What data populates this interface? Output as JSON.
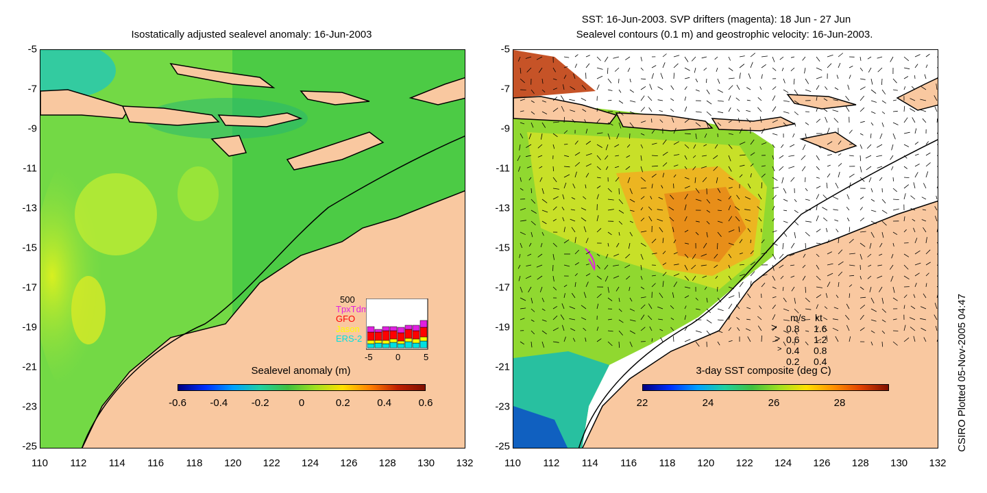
{
  "left_panel": {
    "title": "Isostatically adjusted sealevel anomaly: 16-Jun-2003",
    "y_ticks": [
      "-5",
      "-7",
      "-9",
      "-11",
      "-13",
      "-15",
      "-17",
      "-19",
      "-21",
      "-23",
      "-25"
    ],
    "x_ticks": [
      "110",
      "112",
      "114",
      "116",
      "118",
      "120",
      "122",
      "124",
      "126",
      "128",
      "130",
      "132"
    ],
    "colorbar": {
      "label": "Sealevel anomaly (m)",
      "ticks": [
        "-0.6",
        "-0.4",
        "-0.2",
        "0",
        "0.2",
        "0.4",
        "0.6"
      ],
      "range": [
        -0.6,
        0.6
      ]
    },
    "inset": {
      "max_label": "500",
      "legend": [
        {
          "name": "TpxTdm",
          "color": "#e020e0"
        },
        {
          "name": "GFO",
          "color": "#ff0000"
        },
        {
          "name": "Jason",
          "color": "#ffff00"
        },
        {
          "name": "ERS-2",
          "color": "#00e0e0"
        }
      ],
      "x_ticks": [
        "-5",
        "0",
        "5"
      ]
    }
  },
  "right_panel": {
    "title_line1": "SST: 16-Jun-2003. SVP drifters (magenta): 18 Jun - 27 Jun",
    "title_line2": "Sealevel contours (0.1 m) and geostrophic velocity: 16-Jun-2003.",
    "y_ticks": [
      "-5",
      "-7",
      "-9",
      "-11",
      "-13",
      "-15",
      "-17",
      "-19",
      "-21",
      "-23",
      "-25"
    ],
    "x_ticks": [
      "110",
      "112",
      "114",
      "116",
      "118",
      "120",
      "122",
      "124",
      "126",
      "128",
      "130",
      "132"
    ],
    "colorbar": {
      "label": "3-day SST composite (deg C)",
      "ticks": [
        "22",
        "24",
        "26",
        "28"
      ],
      "range": [
        22,
        29.5
      ]
    },
    "velocity_key": {
      "header_ms": "m/s",
      "header_kt": "kt",
      "rows": [
        {
          "ms": "0.8",
          "kt": "1.6"
        },
        {
          "ms": "0.6",
          "kt": "1.2"
        },
        {
          "ms": "0.4",
          "kt": "0.8"
        },
        {
          "ms": "0.2",
          "kt": "0.4"
        }
      ]
    }
  },
  "credit": "CSIRO Plotted 05-Nov-2005 04:47",
  "colors": {
    "land": "#f9c8a0",
    "coast": "#000000",
    "background": "#ffffff"
  }
}
